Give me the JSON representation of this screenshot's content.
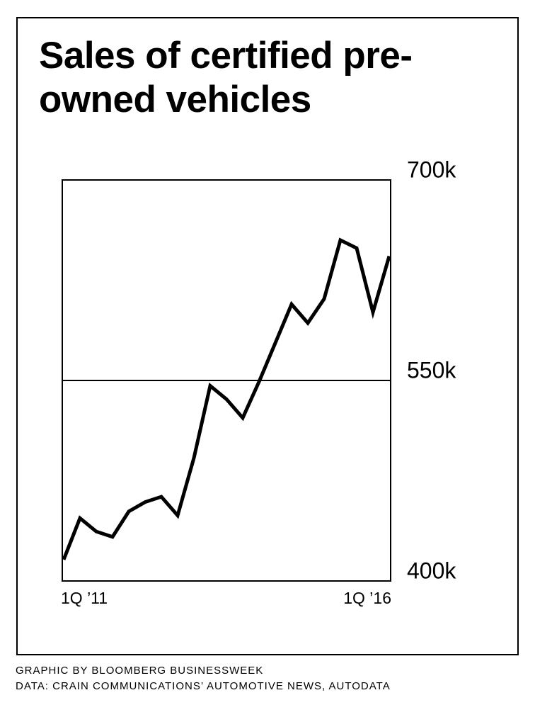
{
  "chart_data": {
    "type": "line",
    "title": "Sales of certified pre-owned vehicles",
    "categories": [
      "1Q ’11",
      null,
      null,
      null,
      null,
      null,
      null,
      null,
      null,
      null,
      null,
      null,
      null,
      null,
      null,
      null,
      null,
      null,
      null,
      null,
      "1Q ’16"
    ],
    "series": [
      {
        "color": "#000000",
        "values": [
          416,
          447,
          437,
          433,
          452,
          459,
          463,
          449,
          492,
          546,
          536,
          522,
          549,
          578,
          607,
          593,
          611,
          655,
          649,
          601,
          643
        ]
      }
    ],
    "ylim": [
      400,
      700
    ],
    "yticks": [
      {
        "value": 400,
        "label": "400k"
      },
      {
        "value": 550,
        "label": "550k"
      },
      {
        "value": 700,
        "label": "700k"
      }
    ],
    "grid": true,
    "credit": "GRAPHIC BY BLOOMBERG BUSINESSWEEK",
    "source": "DATA: CRAIN COMMUNICATIONS’ AUTOMOTIVE NEWS, AUTODATA"
  }
}
